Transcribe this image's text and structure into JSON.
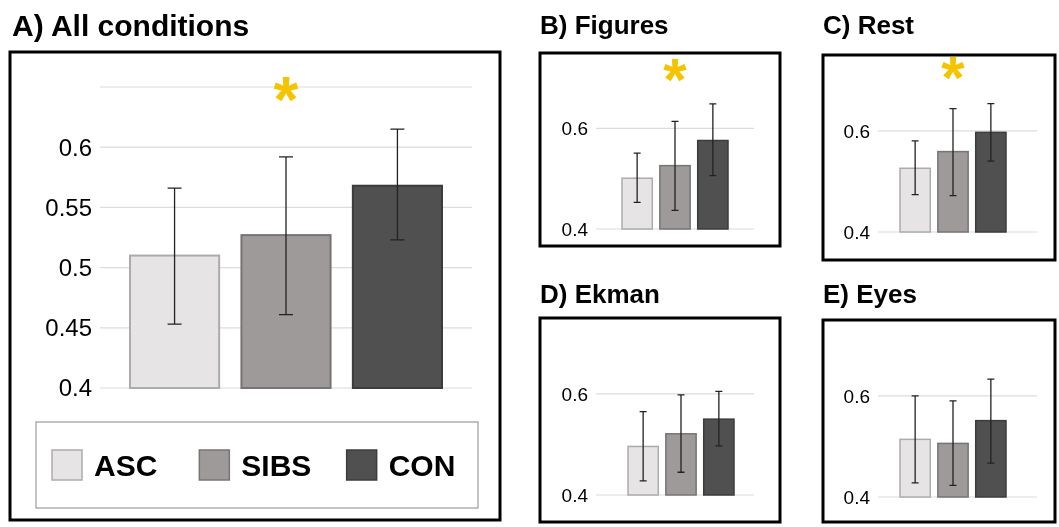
{
  "chart_data": [
    {
      "type": "bar",
      "title": "A)  All conditions",
      "categories": [
        null
      ],
      "ylim": [
        0.4,
        0.65
      ],
      "yticks": [
        0.4,
        0.45,
        0.5,
        0.55,
        0.6,
        {
          "value": 0.65,
          "label": null
        }
      ],
      "grid": "y",
      "tick_labels": "y",
      "legend": "bottom",
      "annotations": [
        "*"
      ],
      "series": [
        {
          "name": "ASC",
          "color": "#e6e4e5",
          "values": [
            0.51
          ],
          "errors": [
            [
              0.453,
              0.566
            ]
          ]
        },
        {
          "name": "SIBS",
          "color": "#9e9a9a",
          "values": [
            0.527
          ],
          "errors": [
            [
              0.461,
              0.592
            ]
          ]
        },
        {
          "name": "CON",
          "color": "#505050",
          "values": [
            0.568
          ],
          "errors": [
            [
              0.523,
              0.615
            ]
          ]
        }
      ]
    },
    {
      "type": "bar",
      "title": "B)  Figures",
      "categories": [
        null
      ],
      "ylim": [
        0.4,
        0.75
      ],
      "yticks": [
        0.4,
        0.6
      ],
      "grid": "y",
      "tick_labels": "y",
      "annotations": [
        "*"
      ],
      "series": [
        {
          "color": "#e6e4e5",
          "values": [
            0.501
          ],
          "errors": [
            [
              0.453,
              0.551
            ]
          ]
        },
        {
          "color": "#9e9a9a",
          "values": [
            0.526
          ],
          "errors": [
            [
              0.437,
              0.614
            ]
          ]
        },
        {
          "color": "#505050",
          "values": [
            0.576
          ],
          "errors": [
            [
              0.506,
              0.649
            ]
          ]
        }
      ]
    },
    {
      "type": "bar",
      "title": "C)  Rest",
      "categories": [
        null
      ],
      "ylim": [
        0.4,
        0.75
      ],
      "yticks": [
        0.4,
        0.6
      ],
      "grid": "y",
      "tick_labels": "y",
      "annotations": [
        "*"
      ],
      "series": [
        {
          "color": "#e6e4e5",
          "values": [
            0.526
          ],
          "errors": [
            [
              0.474,
              0.58
            ]
          ]
        },
        {
          "color": "#9e9a9a",
          "values": [
            0.559
          ],
          "errors": [
            [
              0.472,
              0.644
            ]
          ]
        },
        {
          "color": "#505050",
          "values": [
            0.597
          ],
          "errors": [
            [
              0.54,
              0.654
            ]
          ]
        }
      ]
    },
    {
      "type": "bar",
      "title": "D)  Ekman",
      "categories": [
        null
      ],
      "ylim": [
        0.4,
        0.75
      ],
      "yticks": [
        0.4,
        0.6
      ],
      "grid": "y",
      "tick_labels": "y",
      "series": [
        {
          "color": "#e6e4e5",
          "values": [
            0.496
          ],
          "errors": [
            [
              0.428,
              0.565
            ]
          ]
        },
        {
          "color": "#9e9a9a",
          "values": [
            0.521
          ],
          "errors": [
            [
              0.445,
              0.598
            ]
          ]
        },
        {
          "color": "#505050",
          "values": [
            0.55
          ],
          "errors": [
            [
              0.497,
              0.605
            ]
          ]
        }
      ]
    },
    {
      "type": "bar",
      "title": "E)  Eyes",
      "categories": [
        null
      ],
      "ylim": [
        0.4,
        0.75
      ],
      "yticks": [
        0.4,
        0.6
      ],
      "grid": "y",
      "tick_labels": "y",
      "series": [
        {
          "color": "#e6e4e5",
          "values": [
            0.514
          ],
          "errors": [
            [
              0.428,
              0.6
            ]
          ]
        },
        {
          "color": "#9e9a9a",
          "values": [
            0.506
          ],
          "errors": [
            [
              0.423,
              0.59
            ]
          ]
        },
        {
          "color": "#505050",
          "values": [
            0.551
          ],
          "errors": [
            [
              0.467,
              0.633
            ]
          ]
        }
      ]
    }
  ]
}
